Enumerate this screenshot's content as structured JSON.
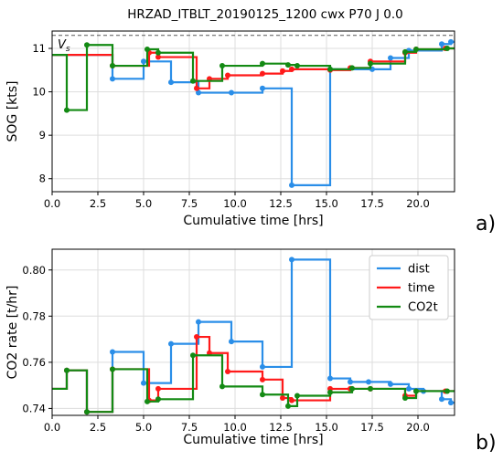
{
  "figure_title": "HRZAD_ITBLT_20190125_1200 cwx P70 J 0.0",
  "colors": {
    "dist": "#2a8ee8",
    "time": "#ff1a1a",
    "CO2t": "#138a13",
    "ref_line": "#555555",
    "grid": "#dddddd"
  },
  "chart_data": [
    {
      "panel_label": "a)",
      "type": "line",
      "step": "post",
      "xlabel": "Cumulative time [hrs]",
      "ylabel": "SOG [kts]",
      "xlim": [
        0,
        22
      ],
      "ylim": [
        7.7,
        11.4
      ],
      "xticks": [
        0,
        2.5,
        5,
        7.5,
        10,
        12.5,
        15,
        17.5,
        20
      ],
      "xtick_labels": [
        "0.0",
        "2.5",
        "5.0",
        "7.5",
        "10.0",
        "12.5",
        "15.0",
        "17.5",
        "20.0"
      ],
      "yticks": [
        8,
        9,
        10,
        11
      ],
      "ytick_labels": [
        "8",
        "9",
        "10",
        "11"
      ],
      "grid": true,
      "reference_line": {
        "label": "V",
        "label_subscript": "s",
        "y": 11.3,
        "style": "dashed"
      },
      "series": [
        {
          "key": "dist",
          "x": [
            0,
            3.3,
            5.0,
            6.5,
            8.0,
            9.8,
            11.5,
            13.1,
            15.2,
            17.5,
            18.5,
            19.5,
            21.3,
            21.8,
            22
          ],
          "y": [
            10.85,
            10.3,
            10.7,
            10.22,
            9.98,
            9.98,
            10.08,
            7.85,
            10.52,
            10.52,
            10.78,
            10.95,
            11.1,
            11.15,
            11.15
          ]
        },
        {
          "key": "time",
          "x": [
            0,
            3.3,
            5.3,
            5.8,
            7.9,
            8.6,
            9.6,
            11.5,
            12.6,
            13.1,
            15.2,
            16.3,
            17.4,
            19.3,
            19.9,
            21.5,
            22
          ],
          "y": [
            10.85,
            10.6,
            10.9,
            10.8,
            10.08,
            10.3,
            10.38,
            10.42,
            10.48,
            10.52,
            10.5,
            10.55,
            10.7,
            10.9,
            10.98,
            11.0,
            11.0
          ]
        },
        {
          "key": "CO2t",
          "x": [
            0,
            0.8,
            1.9,
            3.3,
            5.2,
            5.8,
            7.7,
            9.3,
            11.5,
            12.9,
            13.4,
            15.2,
            16.4,
            17.4,
            19.3,
            19.9,
            21.6,
            22
          ],
          "y": [
            10.85,
            9.58,
            11.08,
            10.6,
            10.98,
            10.9,
            10.25,
            10.6,
            10.65,
            10.62,
            10.6,
            10.52,
            10.55,
            10.65,
            10.92,
            10.98,
            11.0,
            11.0
          ]
        }
      ]
    },
    {
      "panel_label": "b)",
      "type": "line",
      "step": "post",
      "xlabel": "Cumulative time [hrs]",
      "ylabel": "CO2 rate [t/hr]",
      "xlim": [
        0,
        22
      ],
      "ylim": [
        0.737,
        0.809
      ],
      "xticks": [
        0,
        2.5,
        5,
        7.5,
        10,
        12.5,
        15,
        17.5,
        20
      ],
      "xtick_labels": [
        "0.0",
        "2.5",
        "5.0",
        "7.5",
        "10.0",
        "12.5",
        "15.0",
        "17.5",
        "20.0"
      ],
      "yticks": [
        0.74,
        0.76,
        0.78,
        0.8
      ],
      "ytick_labels": [
        "0.74",
        "0.76",
        "0.78",
        "0.80"
      ],
      "grid": true,
      "legend": {
        "position": "top-right",
        "entries": [
          "dist",
          "time",
          "CO2t"
        ]
      },
      "series": [
        {
          "key": "dist",
          "x": [
            0,
            0.8,
            1.9,
            3.3,
            5.0,
            6.5,
            8.0,
            9.8,
            11.5,
            13.1,
            15.2,
            16.3,
            17.3,
            18.5,
            19.5,
            20.3,
            21.3,
            21.8,
            22
          ],
          "y": [
            0.7485,
            0.7565,
            0.7385,
            0.7645,
            0.751,
            0.768,
            0.7775,
            0.769,
            0.758,
            0.8045,
            0.753,
            0.7515,
            0.7515,
            0.7505,
            0.7485,
            0.7475,
            0.744,
            0.7425,
            0.7425
          ]
        },
        {
          "key": "time",
          "x": [
            0,
            0.8,
            1.9,
            3.3,
            5.3,
            5.8,
            7.9,
            8.6,
            9.6,
            11.5,
            12.6,
            13.1,
            15.2,
            16.3,
            17.4,
            19.3,
            19.9,
            21.5,
            22
          ],
          "y": [
            0.7485,
            0.7565,
            0.7385,
            0.757,
            0.7435,
            0.7485,
            0.771,
            0.764,
            0.756,
            0.7525,
            0.7445,
            0.7435,
            0.7485,
            0.7485,
            0.7485,
            0.7455,
            0.7475,
            0.7475,
            0.7475
          ]
        },
        {
          "key": "CO2t",
          "x": [
            0,
            0.8,
            1.9,
            3.3,
            5.2,
            5.8,
            7.7,
            9.3,
            11.5,
            12.9,
            13.4,
            15.2,
            16.4,
            17.4,
            19.3,
            19.9,
            21.6,
            22
          ],
          "y": [
            0.7485,
            0.7565,
            0.7385,
            0.757,
            0.743,
            0.744,
            0.763,
            0.7495,
            0.746,
            0.741,
            0.7455,
            0.747,
            0.7485,
            0.7485,
            0.7445,
            0.7475,
            0.7475,
            0.7475
          ]
        }
      ]
    }
  ]
}
